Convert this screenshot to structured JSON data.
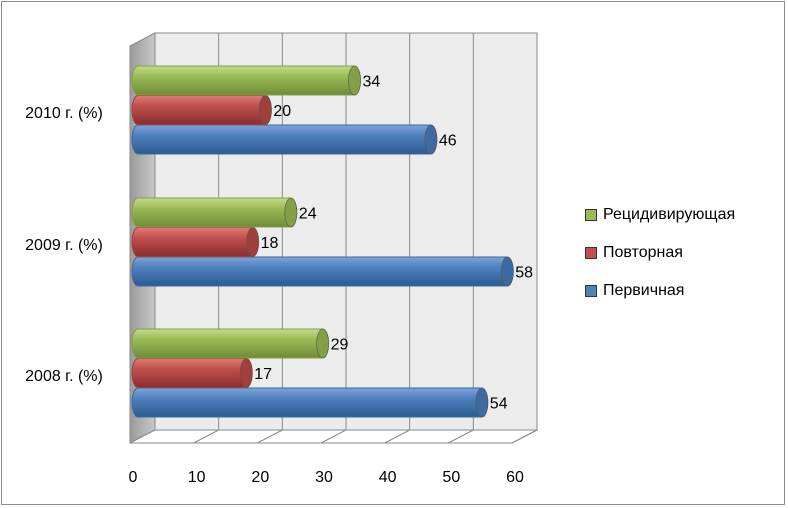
{
  "chart_data": {
    "type": "bar",
    "orientation": "horizontal",
    "categories": [
      "2008 г. (%)",
      "2009 г. (%)",
      "2010 г. (%)"
    ],
    "series": [
      {
        "name": "Первичная",
        "values": [
          54,
          58,
          46
        ],
        "color": "#4f81bd"
      },
      {
        "name": "Повторная",
        "values": [
          17,
          18,
          20
        ],
        "color": "#c0504d"
      },
      {
        "name": "Рецидивирующая",
        "values": [
          29,
          24,
          34
        ],
        "color": "#9bbb59"
      }
    ],
    "xlim": [
      0,
      60
    ],
    "xticks": [
      "0",
      "10",
      "20",
      "30",
      "40",
      "50",
      "60"
    ],
    "grid": true,
    "legend_position": "right",
    "data_labels": true
  }
}
